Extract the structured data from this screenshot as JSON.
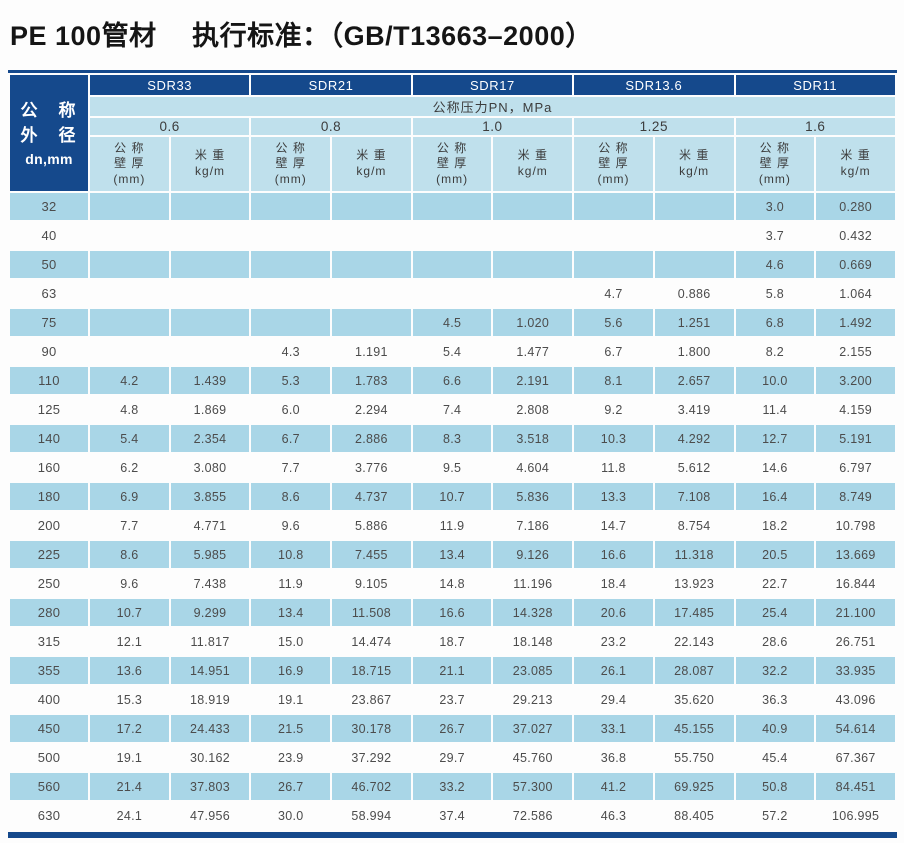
{
  "title": "PE 100管材　 执行标准：（GB/T13663–2000）",
  "colors": {
    "dark_blue": "#15498c",
    "header_light_blue": "#bfe0ec",
    "stripe_blue": "#a9d6e7"
  },
  "table": {
    "corner": {
      "line1": "公　称",
      "line2": "外　径",
      "line3": "dn,mm"
    },
    "sdr_headers": [
      "SDR33",
      "SDR21",
      "SDR17",
      "SDR13.6",
      "SDR11"
    ],
    "pressure_title": "公称压力PN，MPa",
    "pressures": [
      "0.6",
      "0.8",
      "1.0",
      "1.25",
      "1.6"
    ],
    "col_headers": {
      "thickness": [
        "公 称",
        "壁 厚",
        "(mm)"
      ],
      "weight": [
        "米 重",
        "kg/m"
      ]
    },
    "rows": [
      {
        "dn": "32",
        "cells": [
          "",
          "",
          "",
          "",
          "",
          "",
          "",
          "",
          "3.0",
          "0.280"
        ]
      },
      {
        "dn": "40",
        "cells": [
          "",
          "",
          "",
          "",
          "",
          "",
          "",
          "",
          "3.7",
          "0.432"
        ]
      },
      {
        "dn": "50",
        "cells": [
          "",
          "",
          "",
          "",
          "",
          "",
          "",
          "",
          "4.6",
          "0.669"
        ]
      },
      {
        "dn": "63",
        "cells": [
          "",
          "",
          "",
          "",
          "",
          "",
          "4.7",
          "0.886",
          "5.8",
          "1.064"
        ]
      },
      {
        "dn": "75",
        "cells": [
          "",
          "",
          "",
          "",
          "4.5",
          "1.020",
          "5.6",
          "1.251",
          "6.8",
          "1.492"
        ]
      },
      {
        "dn": "90",
        "cells": [
          "",
          "",
          "4.3",
          "1.191",
          "5.4",
          "1.477",
          "6.7",
          "1.800",
          "8.2",
          "2.155"
        ]
      },
      {
        "dn": "110",
        "cells": [
          "4.2",
          "1.439",
          "5.3",
          "1.783",
          "6.6",
          "2.191",
          "8.1",
          "2.657",
          "10.0",
          "3.200"
        ]
      },
      {
        "dn": "125",
        "cells": [
          "4.8",
          "1.869",
          "6.0",
          "2.294",
          "7.4",
          "2.808",
          "9.2",
          "3.419",
          "11.4",
          "4.159"
        ]
      },
      {
        "dn": "140",
        "cells": [
          "5.4",
          "2.354",
          "6.7",
          "2.886",
          "8.3",
          "3.518",
          "10.3",
          "4.292",
          "12.7",
          "5.191"
        ]
      },
      {
        "dn": "160",
        "cells": [
          "6.2",
          "3.080",
          "7.7",
          "3.776",
          "9.5",
          "4.604",
          "11.8",
          "5.612",
          "14.6",
          "6.797"
        ]
      },
      {
        "dn": "180",
        "cells": [
          "6.9",
          "3.855",
          "8.6",
          "4.737",
          "10.7",
          "5.836",
          "13.3",
          "7.108",
          "16.4",
          "8.749"
        ]
      },
      {
        "dn": "200",
        "cells": [
          "7.7",
          "4.771",
          "9.6",
          "5.886",
          "11.9",
          "7.186",
          "14.7",
          "8.754",
          "18.2",
          "10.798"
        ]
      },
      {
        "dn": "225",
        "cells": [
          "8.6",
          "5.985",
          "10.8",
          "7.455",
          "13.4",
          "9.126",
          "16.6",
          "11.318",
          "20.5",
          "13.669"
        ]
      },
      {
        "dn": "250",
        "cells": [
          "9.6",
          "7.438",
          "11.9",
          "9.105",
          "14.8",
          "11.196",
          "18.4",
          "13.923",
          "22.7",
          "16.844"
        ]
      },
      {
        "dn": "280",
        "cells": [
          "10.7",
          "9.299",
          "13.4",
          "11.508",
          "16.6",
          "14.328",
          "20.6",
          "17.485",
          "25.4",
          "21.100"
        ]
      },
      {
        "dn": "315",
        "cells": [
          "12.1",
          "11.817",
          "15.0",
          "14.474",
          "18.7",
          "18.148",
          "23.2",
          "22.143",
          "28.6",
          "26.751"
        ]
      },
      {
        "dn": "355",
        "cells": [
          "13.6",
          "14.951",
          "16.9",
          "18.715",
          "21.1",
          "23.085",
          "26.1",
          "28.087",
          "32.2",
          "33.935"
        ]
      },
      {
        "dn": "400",
        "cells": [
          "15.3",
          "18.919",
          "19.1",
          "23.867",
          "23.7",
          "29.213",
          "29.4",
          "35.620",
          "36.3",
          "43.096"
        ]
      },
      {
        "dn": "450",
        "cells": [
          "17.2",
          "24.433",
          "21.5",
          "30.178",
          "26.7",
          "37.027",
          "33.1",
          "45.155",
          "40.9",
          "54.614"
        ]
      },
      {
        "dn": "500",
        "cells": [
          "19.1",
          "30.162",
          "23.9",
          "37.292",
          "29.7",
          "45.760",
          "36.8",
          "55.750",
          "45.4",
          "67.367"
        ]
      },
      {
        "dn": "560",
        "cells": [
          "21.4",
          "37.803",
          "26.7",
          "46.702",
          "33.2",
          "57.300",
          "41.2",
          "69.925",
          "50.8",
          "84.451"
        ]
      },
      {
        "dn": "630",
        "cells": [
          "24.1",
          "47.956",
          "30.0",
          "58.994",
          "37.4",
          "72.586",
          "46.3",
          "88.405",
          "57.2",
          "106.995"
        ]
      }
    ]
  }
}
